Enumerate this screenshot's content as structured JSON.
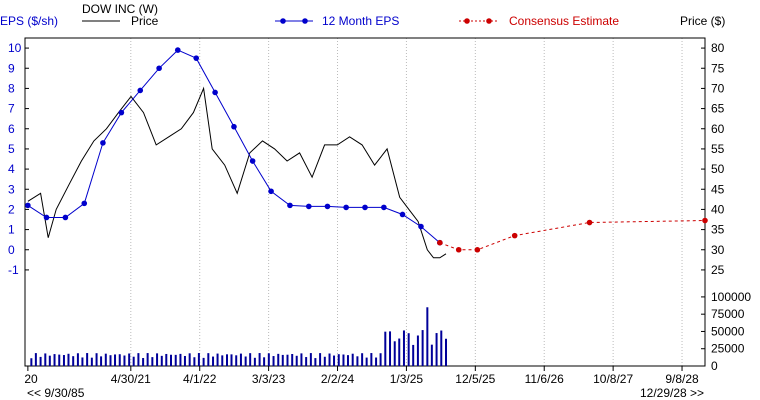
{
  "chart_data": {
    "type": "line",
    "company_label": "DOW INC (W)",
    "legend": {
      "price": "Price",
      "eps": "12 Month EPS",
      "consensus": "Consensus Estimate"
    },
    "left_axis": {
      "label": "EPS ($/sh)",
      "range": [
        -1.5,
        10.5
      ],
      "ticks": [
        10,
        9,
        8,
        7,
        6,
        5,
        4,
        3,
        2,
        1,
        0,
        -1
      ]
    },
    "right_axis": {
      "label": "Price ($)",
      "range": [
        22.5,
        82.5
      ],
      "ticks": [
        80,
        75,
        70,
        65,
        60,
        55,
        50,
        45,
        40,
        35,
        30,
        25
      ]
    },
    "volume_axis": {
      "range": [
        0,
        110000
      ],
      "ticks": [
        "100000",
        "75000",
        "50000",
        "25000",
        "0"
      ]
    },
    "x_axis": {
      "range": [
        "2019-12-01",
        "2028-12-29"
      ],
      "ticks": [
        {
          "date": "2019-12-15",
          "label": "20"
        },
        {
          "date": "2021-04-30",
          "label": "4/30/21"
        },
        {
          "date": "2022-04-01",
          "label": "4/1/22"
        },
        {
          "date": "2023-03-03",
          "label": "3/3/23"
        },
        {
          "date": "2024-02-02",
          "label": "2/2/24"
        },
        {
          "date": "2025-01-03",
          "label": "1/3/25"
        },
        {
          "date": "2025-12-05",
          "label": "12/5/25"
        },
        {
          "date": "2026-11-06",
          "label": "11/6/26"
        },
        {
          "date": "2027-10-08",
          "label": "10/8/27"
        },
        {
          "date": "2028-09-08",
          "label": "9/8/28"
        }
      ],
      "start_note": "<< 9/30/85",
      "end_note": "12/29/28 >>"
    },
    "series": [
      {
        "name": "12 Month EPS",
        "x": [
          "2019-12-15",
          "2020-03-15",
          "2020-06-15",
          "2020-09-15",
          "2020-12-15",
          "2021-03-15",
          "2021-06-15",
          "2021-09-15",
          "2021-12-15",
          "2022-03-15",
          "2022-06-15",
          "2022-09-15",
          "2022-12-15",
          "2023-03-15",
          "2023-06-15",
          "2023-09-15",
          "2023-12-15",
          "2024-03-15",
          "2024-06-15",
          "2024-09-15",
          "2024-12-15",
          "2025-03-15",
          "2025-06-15"
        ],
        "y": [
          2.2,
          1.6,
          1.6,
          2.3,
          5.3,
          6.8,
          7.9,
          9.0,
          9.9,
          9.5,
          7.8,
          6.1,
          4.4,
          2.9,
          2.2,
          2.15,
          2.15,
          2.1,
          2.1,
          2.1,
          1.75,
          1.15,
          0.35
        ]
      },
      {
        "name": "Consensus Estimate",
        "x": [
          "2025-06-15",
          "2025-09-15",
          "2025-12-15",
          "2026-06-15",
          "2027-06-15",
          "2028-12-29"
        ],
        "y": [
          0.35,
          0.0,
          0.0,
          0.7,
          1.35,
          1.45
        ]
      },
      {
        "name": "Price",
        "x": [
          "2019-12-15",
          "2020-02-15",
          "2020-03-23",
          "2020-05-01",
          "2020-07-01",
          "2020-09-01",
          "2020-11-01",
          "2021-01-01",
          "2021-03-01",
          "2021-05-01",
          "2021-07-01",
          "2021-09-01",
          "2021-11-01",
          "2022-01-01",
          "2022-03-01",
          "2022-04-20",
          "2022-06-01",
          "2022-08-01",
          "2022-10-01",
          "2022-12-01",
          "2023-02-01",
          "2023-04-01",
          "2023-06-01",
          "2023-08-01",
          "2023-10-01",
          "2023-12-01",
          "2024-02-01",
          "2024-04-01",
          "2024-06-01",
          "2024-08-01",
          "2024-10-01",
          "2024-12-01",
          "2025-01-15",
          "2025-03-01",
          "2025-04-15",
          "2025-05-15",
          "2025-06-15",
          "2025-07-15"
        ],
        "y": [
          42,
          44,
          33,
          40,
          46,
          52,
          57,
          60,
          64,
          68,
          64,
          56,
          58,
          60,
          64,
          70,
          55,
          51,
          44,
          54,
          57,
          55,
          52,
          54,
          48,
          56,
          56,
          58,
          56,
          51,
          55,
          43,
          40,
          37,
          30,
          28,
          28,
          29
        ]
      }
    ],
    "volume": {
      "start": "2020-01-01",
      "end": "2025-07-15",
      "bars": 90,
      "base_level": 15000,
      "late_level": 40000,
      "peak": 85000
    }
  }
}
